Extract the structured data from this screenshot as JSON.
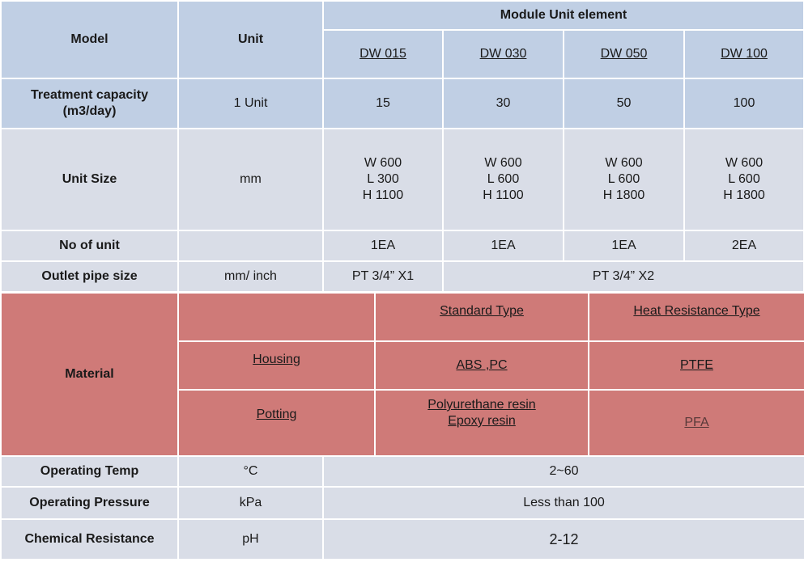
{
  "header": {
    "model": "Model",
    "unit": "Unit",
    "module_group": "Module Unit element",
    "models": [
      "DW 015",
      "DW 030",
      "DW 050",
      "DW 100"
    ]
  },
  "treatment": {
    "label": "Treatment capacity\n(m3/day)",
    "unit": "1 Unit",
    "values": [
      "15",
      "30",
      "50",
      "100"
    ]
  },
  "unit_size": {
    "label": "Unit Size",
    "unit": "mm",
    "values": [
      "W 600\nL 300\nH 1100",
      "W 600\nL 600\nH 1100",
      "W 600\nL 600\nH 1800",
      "W 600\nL 600\nH 1800"
    ]
  },
  "no_of_unit": {
    "label": "No of unit",
    "unit": "",
    "values": [
      "1EA",
      "1EA",
      "1EA",
      "2EA"
    ]
  },
  "outlet": {
    "label": "Outlet pipe size",
    "unit": "mm/ inch",
    "first": "PT 3/4” X1",
    "rest": "PT 3/4” X2"
  },
  "material": {
    "label": "Material",
    "standard_type": "Standard Type",
    "heat_type": "Heat Resistance Type",
    "housing": {
      "label": "Housing",
      "standard": "ABS ,PC",
      "heat": "PTFE"
    },
    "potting": {
      "label": "Potting",
      "standard": "Polyurethane resin\nEpoxy resin",
      "heat": "PFA"
    }
  },
  "operating_temp": {
    "label": "Operating Temp",
    "unit": "°C",
    "value": "2~60"
  },
  "operating_pressure": {
    "label": "Operating Pressure",
    "unit": "kPa",
    "value": "Less than 100"
  },
  "chemical_resistance": {
    "label": "Chemical Resistance",
    "unit": "pH",
    "value": "2-12"
  },
  "colors": {
    "header_blue": "#c0cfe4",
    "row_grey": "#d9dde7",
    "material_red": "#cf7a78"
  }
}
